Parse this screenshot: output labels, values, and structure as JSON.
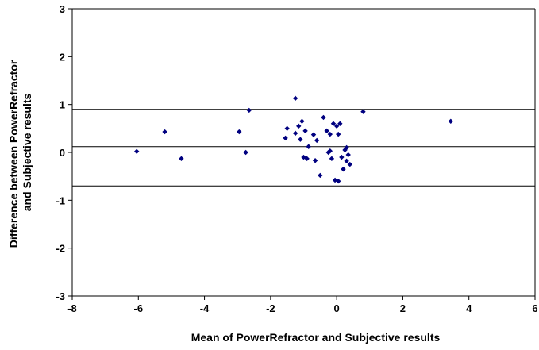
{
  "chart_data": {
    "type": "scatter",
    "title": "",
    "xlabel": "Mean of PowerRefractor and Subjective results",
    "ylabel_lines": [
      "Difference between  PowerRefractor",
      "and Subjective results"
    ],
    "xlim": [
      -8,
      6
    ],
    "ylim": [
      -3,
      3
    ],
    "xticks": [
      -8,
      -6,
      -4,
      -2,
      0,
      2,
      4,
      6
    ],
    "yticks": [
      -3,
      -2,
      -1,
      0,
      1,
      2,
      3
    ],
    "grid": false,
    "reference_lines": [
      0.9,
      0.12,
      -0.7
    ],
    "marker_color": "#000080",
    "points": [
      {
        "x": -6.05,
        "y": 0.02
      },
      {
        "x": -5.2,
        "y": 0.43
      },
      {
        "x": -4.7,
        "y": -0.13
      },
      {
        "x": -2.95,
        "y": 0.43
      },
      {
        "x": -2.75,
        "y": 0.0
      },
      {
        "x": -2.65,
        "y": 0.88
      },
      {
        "x": -1.55,
        "y": 0.3
      },
      {
        "x": -1.5,
        "y": 0.5
      },
      {
        "x": -1.25,
        "y": 1.13
      },
      {
        "x": -1.25,
        "y": 0.4
      },
      {
        "x": -1.15,
        "y": 0.55
      },
      {
        "x": -1.1,
        "y": 0.27
      },
      {
        "x": -1.05,
        "y": 0.65
      },
      {
        "x": -1.0,
        "y": -0.1
      },
      {
        "x": -0.95,
        "y": 0.45
      },
      {
        "x": -0.9,
        "y": -0.13
      },
      {
        "x": -0.85,
        "y": 0.12
      },
      {
        "x": -0.7,
        "y": 0.37
      },
      {
        "x": -0.65,
        "y": -0.17
      },
      {
        "x": -0.6,
        "y": 0.25
      },
      {
        "x": -0.5,
        "y": -0.48
      },
      {
        "x": -0.4,
        "y": 0.73
      },
      {
        "x": -0.3,
        "y": 0.45
      },
      {
        "x": -0.25,
        "y": 0.0
      },
      {
        "x": -0.2,
        "y": 0.03
      },
      {
        "x": -0.2,
        "y": 0.38
      },
      {
        "x": -0.15,
        "y": -0.13
      },
      {
        "x": -0.1,
        "y": 0.6
      },
      {
        "x": -0.05,
        "y": -0.58
      },
      {
        "x": 0.0,
        "y": 0.55
      },
      {
        "x": 0.05,
        "y": -0.6
      },
      {
        "x": 0.05,
        "y": 0.38
      },
      {
        "x": 0.1,
        "y": 0.6
      },
      {
        "x": 0.15,
        "y": -0.1
      },
      {
        "x": 0.2,
        "y": -0.35
      },
      {
        "x": 0.25,
        "y": 0.05
      },
      {
        "x": 0.3,
        "y": -0.18
      },
      {
        "x": 0.3,
        "y": 0.1
      },
      {
        "x": 0.35,
        "y": -0.05
      },
      {
        "x": 0.4,
        "y": -0.25
      },
      {
        "x": 0.8,
        "y": 0.85
      },
      {
        "x": 3.45,
        "y": 0.65
      }
    ]
  }
}
